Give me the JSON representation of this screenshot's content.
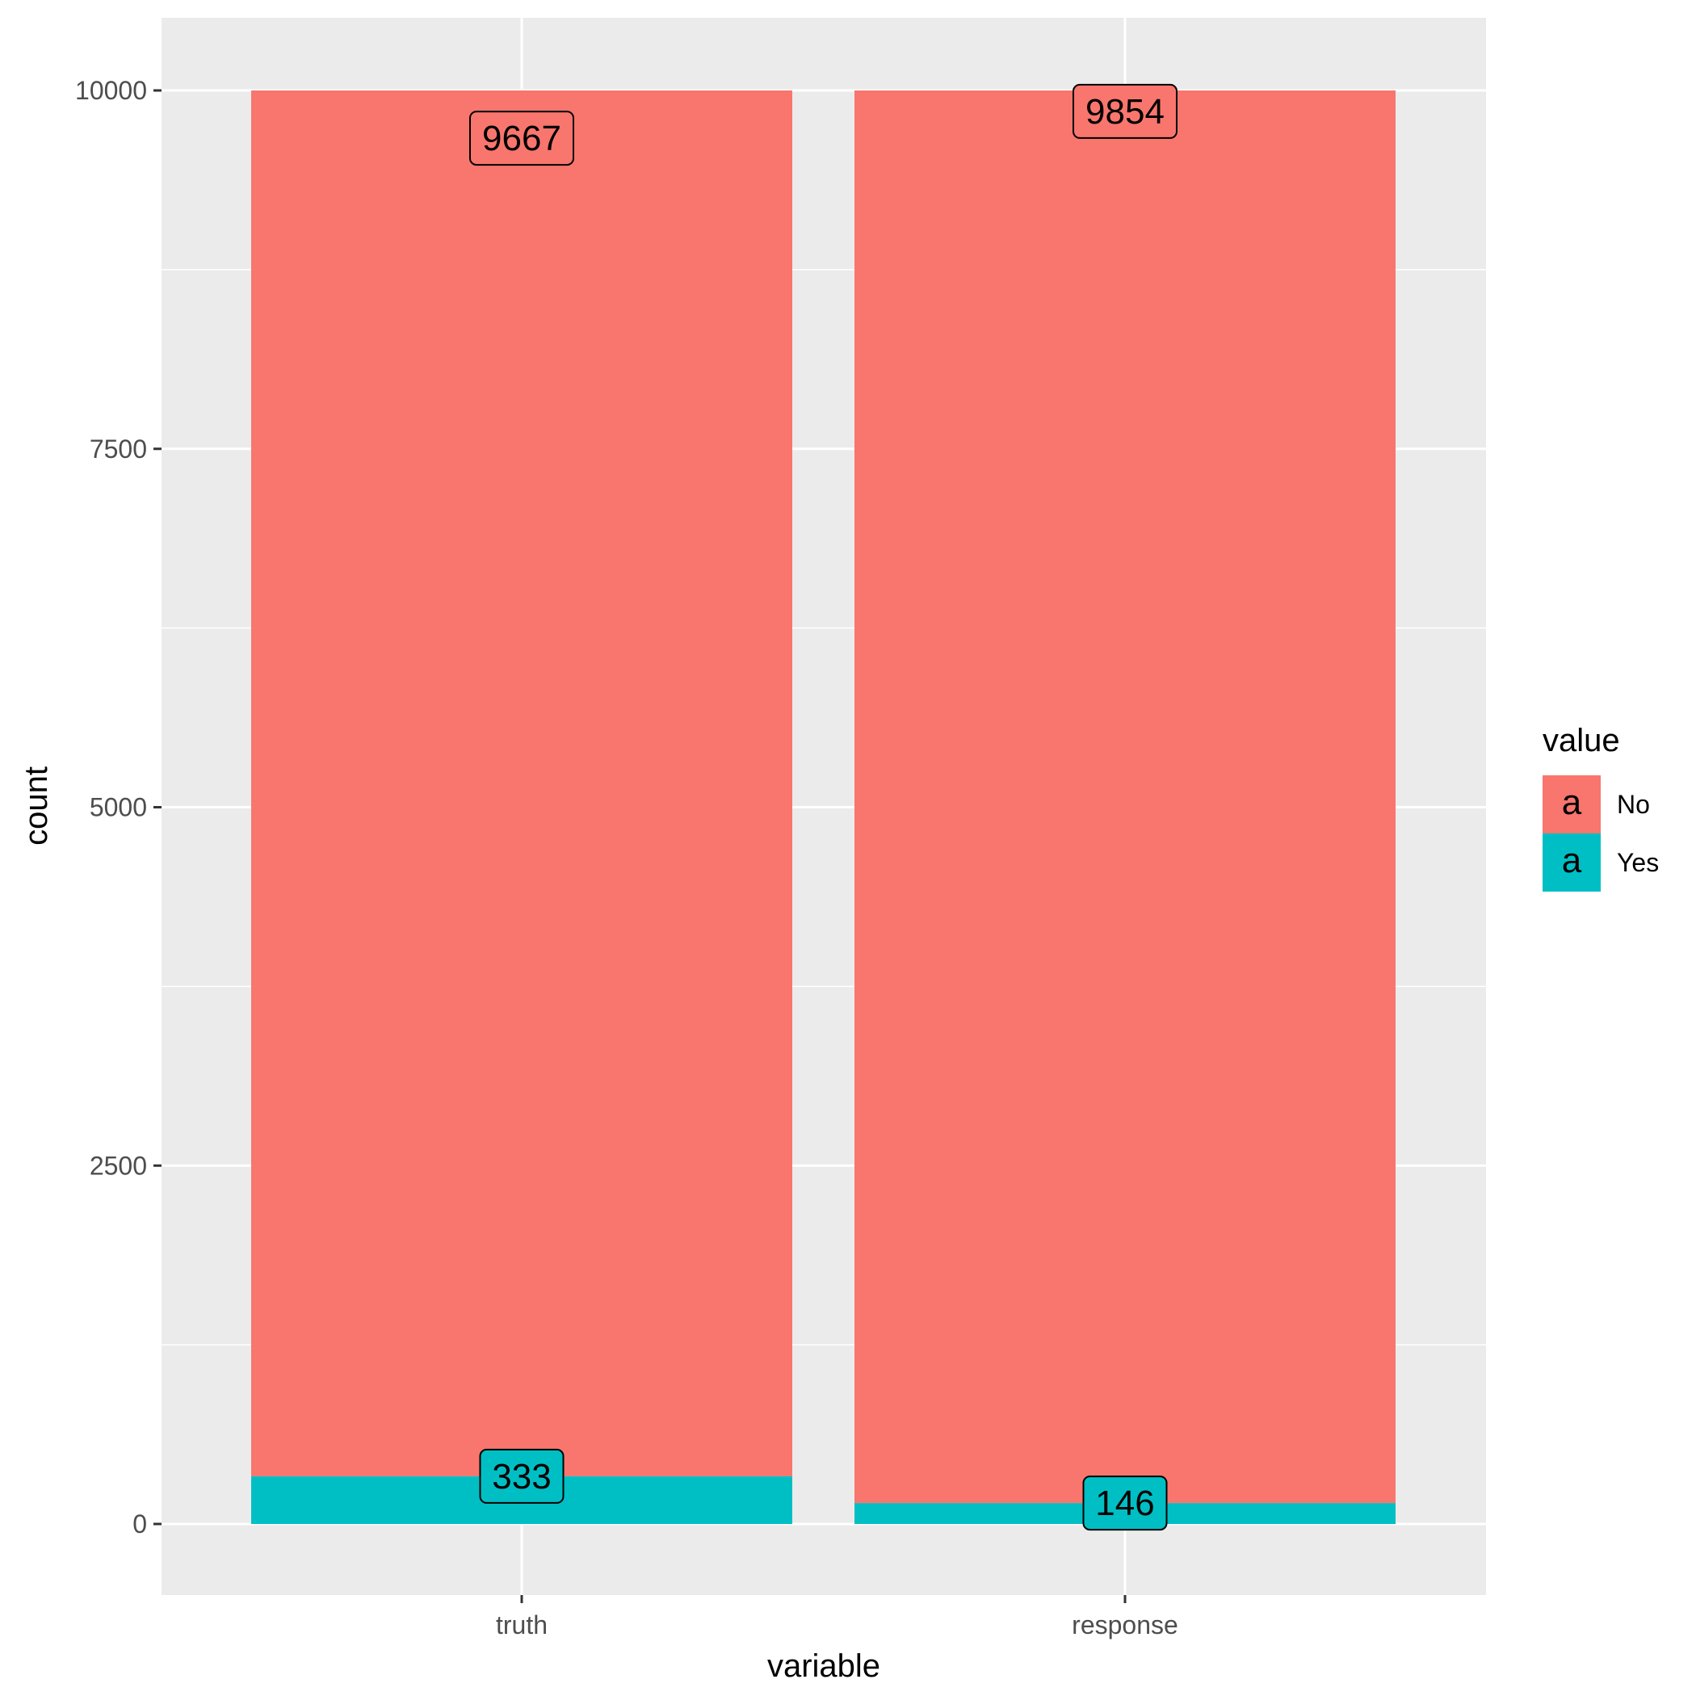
{
  "chart_data": {
    "type": "bar",
    "stacked": true,
    "categories": [
      "truth",
      "response"
    ],
    "series": [
      {
        "name": "No",
        "values": [
          9667,
          9854
        ],
        "color": "#F8766D"
      },
      {
        "name": "Yes",
        "values": [
          333,
          146
        ],
        "color": "#00BFC4"
      }
    ],
    "xlabel": "variable",
    "ylabel": "count",
    "ylim": [
      -500,
      10500
    ],
    "yticks": [
      0,
      2500,
      5000,
      7500,
      10000
    ],
    "ytick_labels": [
      "0",
      "2500",
      "5000",
      "7500",
      "10000"
    ],
    "legend": {
      "title": "value",
      "key_glyph": "a",
      "placement": "right"
    },
    "grid": true,
    "panel_color": "#EBEBEB"
  }
}
